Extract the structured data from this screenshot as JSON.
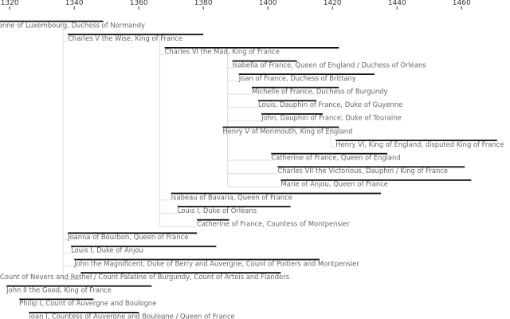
{
  "chart_data": {
    "type": "timeline",
    "title": "",
    "xlabel": "",
    "ylabel": "",
    "xlim": [
      1317,
      1475
    ],
    "axis_ticks": [
      1320,
      1340,
      1360,
      1380,
      1400,
      1420,
      1440,
      1460
    ],
    "grid": false,
    "colors": {
      "bar": "#111111",
      "label": "#666666",
      "connector": "#dddddd",
      "axis": "#333333"
    },
    "people": [
      {
        "name": "Bonne of Luxembourg, Duchess of Normandy",
        "start": 1315,
        "end": 1349,
        "parent": null
      },
      {
        "name": "Charles V the Wise, King of France",
        "start": 1338,
        "end": 1380,
        "parent": 0
      },
      {
        "name": "Charles VI the Mad, King of France",
        "start": 1368,
        "end": 1422,
        "parent": 1
      },
      {
        "name": "Isabella of France, Queen of England / Duchess of Orléans",
        "start": 1389,
        "end": 1409,
        "parent": 2
      },
      {
        "name": "Joan of France, Duchess of Brittany",
        "start": 1391,
        "end": 1433,
        "parent": 2
      },
      {
        "name": "Michelle of France, Duchess of Burgundy",
        "start": 1395,
        "end": 1422,
        "parent": 2
      },
      {
        "name": "Louis, Dauphin of France, Duke of Guyenne",
        "start": 1397,
        "end": 1415,
        "parent": 2
      },
      {
        "name": "John, Dauphin of France, Duke of Touraine",
        "start": 1398,
        "end": 1417,
        "parent": 2
      },
      {
        "name": "Henry V of Monmouth, King of England",
        "start": 1386,
        "end": 1422,
        "parent": 2
      },
      {
        "name": "Henry VI, King of England, disputed King of France",
        "start": 1421,
        "end": 1471,
        "parent": 8
      },
      {
        "name": "Catherine of France, Queen of England",
        "start": 1401,
        "end": 1437,
        "parent": 2
      },
      {
        "name": "Charles VII the Victorious, Dauphin / King of France",
        "start": 1403,
        "end": 1461,
        "parent": 2
      },
      {
        "name": "Marie of Anjou, Queen of France",
        "start": 1404,
        "end": 1463,
        "parent": 2
      },
      {
        "name": "Isabeau of Bavaria, Queen of France",
        "start": 1370,
        "end": 1435,
        "parent": 1
      },
      {
        "name": "Louis I, Duke of Orléans",
        "start": 1372,
        "end": 1407,
        "parent": 1
      },
      {
        "name": "Catherine of France, Countess of Montpensier",
        "start": 1378,
        "end": 1388,
        "parent": 1
      },
      {
        "name": "Joanna of Bourbon, Queen of France",
        "start": 1338,
        "end": 1378,
        "parent": 0
      },
      {
        "name": "Louis I, Duke of Anjou",
        "start": 1339,
        "end": 1384,
        "parent": 0
      },
      {
        "name": "John the Magnificent, Duke of Berry and Auvergne, Count of Poitiers and Montpensier",
        "start": 1340,
        "end": 1416,
        "parent": 0
      },
      {
        "name": "Philip II the Bold, Duke of Burgundy, Count of Nevers and Rethel / Count Palatine of Burgundy, Count of Artois and Flanders",
        "start": 1342,
        "end": 1404,
        "parent": 0
      },
      {
        "name": "John II the Good, King of France",
        "start": 1319,
        "end": 1364,
        "parent": null
      },
      {
        "name": "Philip I, Count of Auvergne and Boulogne",
        "start": 1323,
        "end": 1346,
        "parent": null
      },
      {
        "name": "Joan I, Countess of Auvergne and Boulogne / Queen of France",
        "start": 1326,
        "end": 1360,
        "parent": null
      }
    ]
  }
}
